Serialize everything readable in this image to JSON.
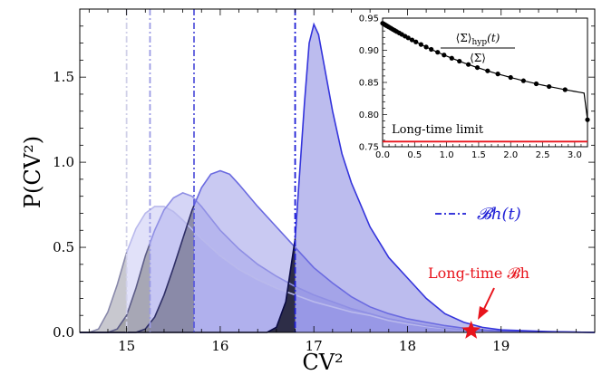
{
  "chart_data": {
    "type": "area",
    "title": "",
    "xlabel": "CV²",
    "ylabel": "P(CV²)",
    "xlim": [
      14.5,
      20.0
    ],
    "ylim": [
      0,
      1.9
    ],
    "xticks": [
      15,
      16,
      17,
      18,
      19
    ],
    "yticks": [
      0.0,
      0.5,
      1.0,
      1.5
    ],
    "xtick_labels": [
      "15",
      "16",
      "17",
      "18",
      "19"
    ],
    "ytick_labels": [
      "0.0",
      "0.5",
      "1.0",
      "1.5"
    ],
    "grid": false,
    "series": [
      {
        "color": "#c9c9f4",
        "threshold": 15.0,
        "x": [
          14.5,
          14.6,
          14.7,
          14.8,
          14.9,
          15.0,
          15.1,
          15.2,
          15.3,
          15.4,
          15.5,
          15.6,
          15.8,
          16.0,
          16.2,
          16.4,
          16.6,
          16.8,
          17.0,
          17.2,
          17.4,
          17.6,
          17.8,
          18.0,
          18.2,
          18.4,
          18.6,
          18.8,
          19.0,
          20.0
        ],
        "y": [
          0.0,
          0.0,
          0.02,
          0.12,
          0.28,
          0.47,
          0.61,
          0.7,
          0.74,
          0.74,
          0.71,
          0.66,
          0.55,
          0.45,
          0.37,
          0.31,
          0.26,
          0.22,
          0.18,
          0.15,
          0.12,
          0.1,
          0.07,
          0.05,
          0.035,
          0.022,
          0.014,
          0.008,
          0.004,
          0.0
        ]
      },
      {
        "color": "#b3b3ee",
        "threshold": 15.25,
        "x": [
          14.5,
          14.7,
          14.8,
          14.9,
          15.0,
          15.1,
          15.2,
          15.3,
          15.4,
          15.5,
          15.6,
          15.7,
          15.8,
          16.0,
          16.2,
          16.4,
          16.6,
          16.8,
          17.0,
          17.2,
          17.4,
          17.6,
          17.8,
          18.0,
          18.2,
          18.4,
          18.6,
          18.8,
          19.0,
          20.0
        ],
        "y": [
          0.0,
          0.0,
          0.0,
          0.02,
          0.1,
          0.26,
          0.45,
          0.6,
          0.72,
          0.79,
          0.82,
          0.8,
          0.74,
          0.6,
          0.49,
          0.4,
          0.33,
          0.27,
          0.22,
          0.18,
          0.14,
          0.11,
          0.08,
          0.06,
          0.04,
          0.025,
          0.015,
          0.009,
          0.005,
          0.0
        ]
      },
      {
        "color": "#9d9de8",
        "threshold": 15.72,
        "x": [
          14.5,
          15.1,
          15.2,
          15.3,
          15.4,
          15.5,
          15.6,
          15.7,
          15.8,
          15.9,
          16.0,
          16.1,
          16.2,
          16.4,
          16.6,
          16.8,
          17.0,
          17.2,
          17.4,
          17.6,
          17.8,
          18.0,
          18.2,
          18.4,
          18.6,
          18.8,
          19.0,
          20.0
        ],
        "y": [
          0.0,
          0.0,
          0.02,
          0.09,
          0.22,
          0.38,
          0.55,
          0.72,
          0.85,
          0.93,
          0.95,
          0.93,
          0.87,
          0.74,
          0.62,
          0.5,
          0.38,
          0.29,
          0.21,
          0.15,
          0.11,
          0.08,
          0.06,
          0.04,
          0.025,
          0.015,
          0.008,
          0.0
        ]
      },
      {
        "color": "#8585e0",
        "threshold": 16.8,
        "x": [
          14.5,
          16.5,
          16.6,
          16.7,
          16.8,
          16.85,
          16.9,
          16.95,
          17.0,
          17.05,
          17.1,
          17.2,
          17.3,
          17.4,
          17.5,
          17.6,
          17.8,
          18.0,
          18.2,
          18.4,
          18.6,
          18.8,
          19.0,
          19.5,
          20.0
        ],
        "y": [
          0.0,
          0.0,
          0.03,
          0.18,
          0.55,
          0.95,
          1.35,
          1.7,
          1.81,
          1.75,
          1.6,
          1.3,
          1.05,
          0.88,
          0.75,
          0.62,
          0.44,
          0.32,
          0.2,
          0.11,
          0.06,
          0.03,
          0.015,
          0.005,
          0.0
        ]
      }
    ],
    "threshold_label": "𝓑h(t)",
    "marker": {
      "x": 18.68,
      "y": 0.0,
      "label": "Long-time 𝓑h"
    },
    "inset": {
      "type": "scatter",
      "title": "⟨Σ⟩hyp(t) / ⟨Σ⟩",
      "title_num": "⟨Σ⟩",
      "title_num_sub": "hyp",
      "title_num_arg": "(t)",
      "title_den": "⟨Σ⟩",
      "xlim": [
        0.0,
        3.2
      ],
      "ylim": [
        0.75,
        0.95
      ],
      "xticks": [
        0.0,
        0.5,
        1.0,
        1.5,
        2.0,
        2.5,
        3.0
      ],
      "yticks": [
        0.75,
        0.8,
        0.85,
        0.9,
        0.95
      ],
      "xtick_labels": [
        "0.0",
        "0.5",
        "1.0",
        "1.5",
        "2.0",
        "2.5",
        "3.0"
      ],
      "ytick_labels": [
        "0.75",
        "0.80",
        "0.85",
        "0.90",
        "0.95"
      ],
      "x": [
        0.0,
        0.02,
        0.04,
        0.06,
        0.08,
        0.1,
        0.13,
        0.16,
        0.19,
        0.22,
        0.26,
        0.3,
        0.35,
        0.4,
        0.46,
        0.52,
        0.6,
        0.68,
        0.76,
        0.86,
        0.96,
        1.08,
        1.2,
        1.34,
        1.48,
        1.64,
        1.8,
        2.0,
        2.2,
        2.4,
        2.6,
        2.85,
        3.2
      ],
      "y": [
        0.942,
        0.9408,
        0.9396,
        0.9384,
        0.9372,
        0.936,
        0.9343,
        0.9325,
        0.9308,
        0.9291,
        0.9269,
        0.9247,
        0.9219,
        0.9193,
        0.9161,
        0.913,
        0.909,
        0.9051,
        0.9014,
        0.8969,
        0.8926,
        0.8877,
        0.883,
        0.8779,
        0.8731,
        0.868,
        0.8632,
        0.8577,
        0.8526,
        0.8479,
        0.8436,
        0.8387,
        0.8325
      ],
      "fit_y_end": 0.792,
      "limit": {
        "y": 0.758,
        "label": "Long-time limit",
        "color": "#e8141c"
      }
    }
  }
}
